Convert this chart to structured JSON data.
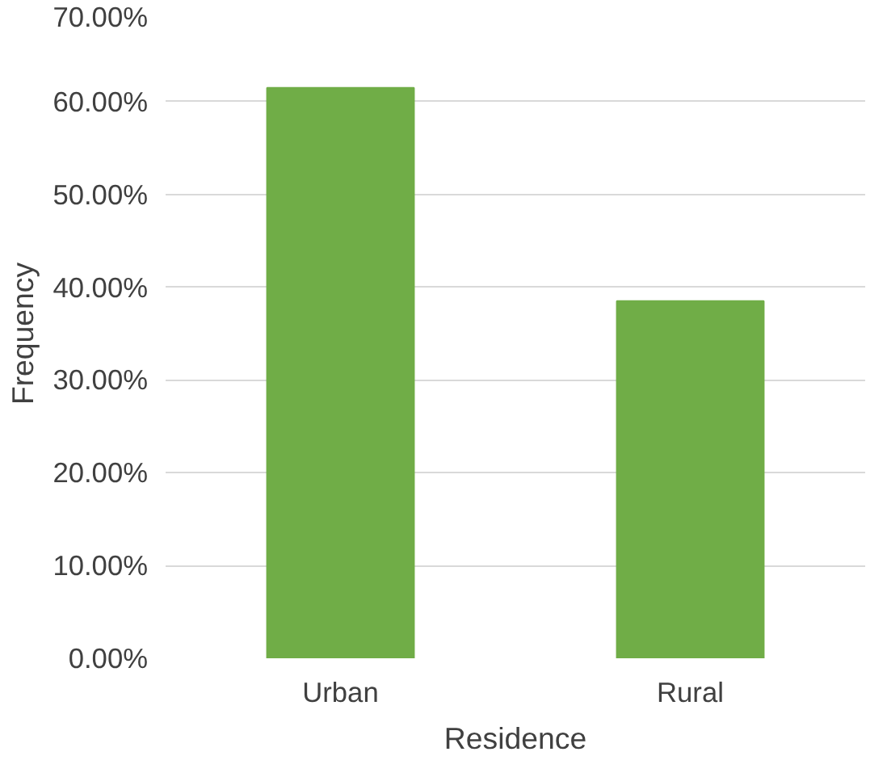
{
  "chart_data": {
    "type": "bar",
    "xlabel": "Residence",
    "ylabel": "Frequency",
    "categories": [
      "Urban",
      "Rural"
    ],
    "values": [
      61.5,
      38.5
    ],
    "color": "#70ad47",
    "ylim": [
      0,
      70
    ],
    "yticks": [
      {
        "value": 0,
        "label": "0.00%"
      },
      {
        "value": 10,
        "label": "10.00%"
      },
      {
        "value": 20,
        "label": "20.00%"
      },
      {
        "value": 30,
        "label": "30.00%"
      },
      {
        "value": 40,
        "label": "40.00%"
      },
      {
        "value": 50,
        "label": "50.00%"
      },
      {
        "value": 60,
        "label": "60.00%"
      },
      {
        "value": 70,
        "label": "70.00%"
      }
    ],
    "grid": "y"
  }
}
